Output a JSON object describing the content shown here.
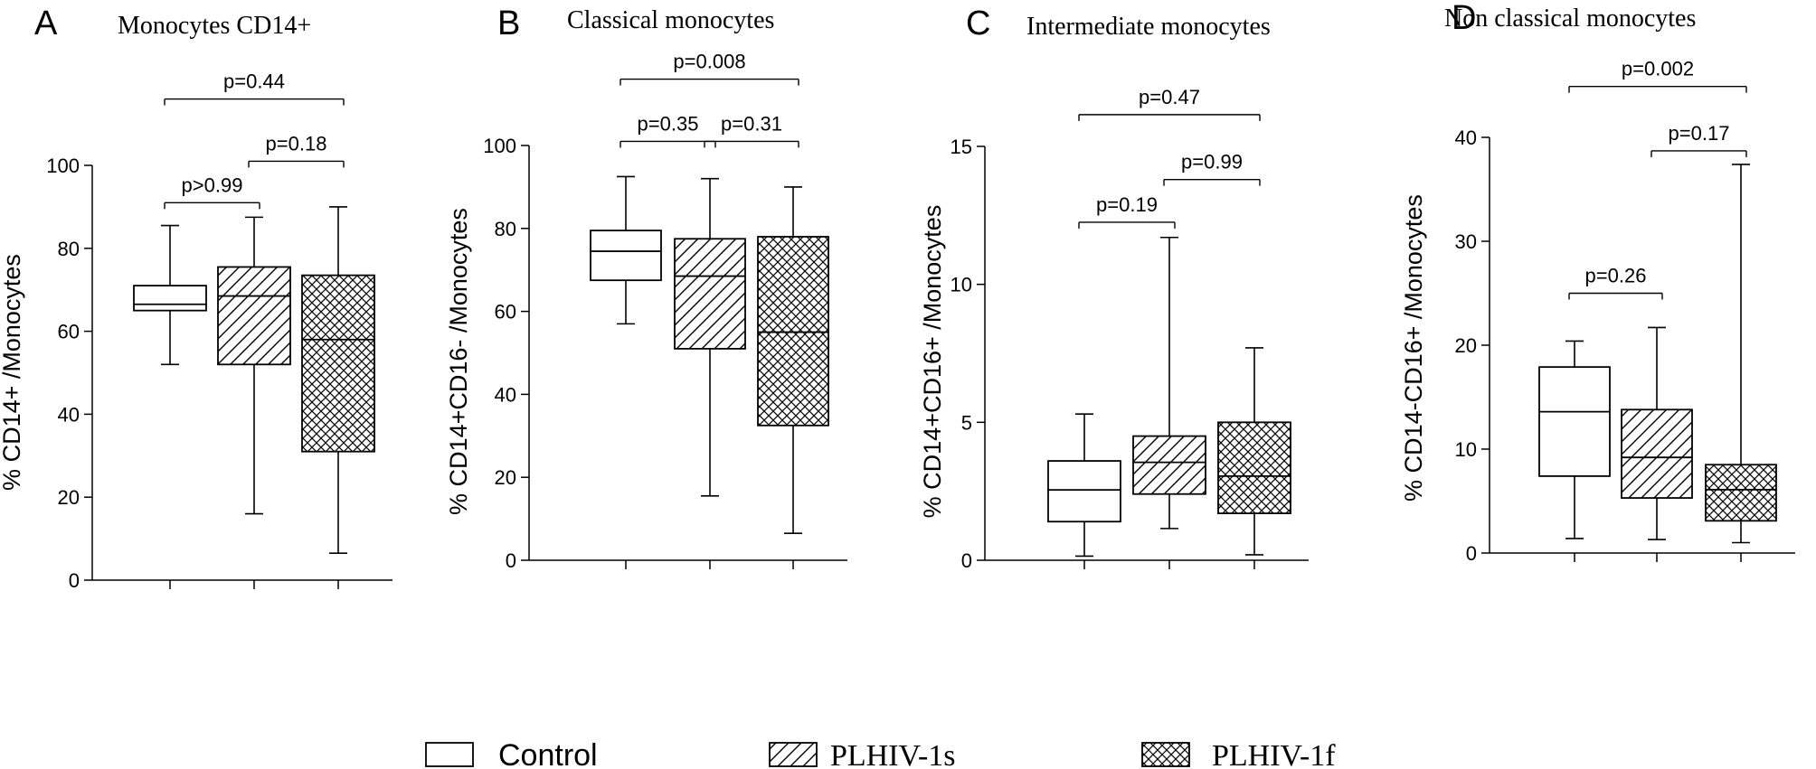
{
  "legend": [
    {
      "label": "Control",
      "pattern": "none"
    },
    {
      "label": "PLHIV-1s",
      "pattern": "hatch"
    },
    {
      "label": "PLHIV-1f",
      "pattern": "crosshatch"
    }
  ],
  "chart_data": [
    {
      "type": "box",
      "panel": "A",
      "title": "Monocytes CD14+",
      "ylabel": "% CD14+ /Monocytes",
      "ylim": [
        0,
        100
      ],
      "yticks": [
        0,
        20,
        40,
        60,
        80,
        100
      ],
      "groups": [
        "Control",
        "PLHIV-1s",
        "PLHIV-1f"
      ],
      "boxes": [
        {
          "group": "Control",
          "min": 52,
          "q1": 65,
          "median": 66.5,
          "q3": 71,
          "max": 85.5
        },
        {
          "group": "PLHIV-1s",
          "min": 16,
          "q1": 52,
          "median": 68.5,
          "q3": 75.5,
          "max": 87.5
        },
        {
          "group": "PLHIV-1f",
          "min": 6.5,
          "q1": 31,
          "median": 58,
          "q3": 73.5,
          "max": 90
        }
      ],
      "comparisons": [
        {
          "groups": [
            0,
            1
          ],
          "label": "p>0.99",
          "y": 91
        },
        {
          "groups": [
            1,
            2
          ],
          "label": "p=0.18",
          "y": 101
        },
        {
          "groups": [
            0,
            2
          ],
          "label": "p=0.44",
          "y": 116
        }
      ]
    },
    {
      "type": "box",
      "panel": "B",
      "title": "Classical monocytes",
      "ylabel": "% CD14+CD16- /Monocytes",
      "ylim": [
        0,
        100
      ],
      "yticks": [
        0,
        20,
        40,
        60,
        80,
        100
      ],
      "groups": [
        "Control",
        "PLHIV-1s",
        "PLHIV-1f"
      ],
      "boxes": [
        {
          "group": "Control",
          "min": 57,
          "q1": 67.5,
          "median": 74.5,
          "q3": 79.5,
          "max": 92.5
        },
        {
          "group": "PLHIV-1s",
          "min": 15.5,
          "q1": 51,
          "median": 68.5,
          "q3": 77.5,
          "max": 92
        },
        {
          "group": "PLHIV-1f",
          "min": 6.5,
          "q1": 32.5,
          "median": 55,
          "q3": 78,
          "max": 90
        }
      ],
      "comparisons": [
        {
          "groups": [
            0,
            1
          ],
          "label": "p=0.35",
          "y": 101
        },
        {
          "groups": [
            1,
            2
          ],
          "label": "p=0.31",
          "y": 101
        },
        {
          "groups": [
            0,
            2
          ],
          "label": "p=0.008",
          "y": 116
        }
      ]
    },
    {
      "type": "box",
      "panel": "C",
      "title": "Intermediate monocytes",
      "ylabel": "% CD14+CD16+ /Monocytes",
      "ylim": [
        0,
        15
      ],
      "yticks": [
        0,
        5,
        10,
        15
      ],
      "groups": [
        "Control",
        "PLHIV-1s",
        "PLHIV-1f"
      ],
      "boxes": [
        {
          "group": "Control",
          "min": 0.15,
          "q1": 1.4,
          "median": 2.55,
          "q3": 3.6,
          "max": 5.3
        },
        {
          "group": "PLHIV-1s",
          "min": 1.15,
          "q1": 2.4,
          "median": 3.55,
          "q3": 4.5,
          "max": 11.7
        },
        {
          "group": "PLHIV-1f",
          "min": 0.2,
          "q1": 1.7,
          "median": 3.05,
          "q3": 5,
          "max": 7.7
        }
      ],
      "comparisons": [
        {
          "groups": [
            0,
            1
          ],
          "label": "p=0.19",
          "y": 12.25
        },
        {
          "groups": [
            1,
            2
          ],
          "label": "p=0.99",
          "y": 13.8
        },
        {
          "groups": [
            0,
            2
          ],
          "label": "p=0.47",
          "y": 16.15
        }
      ]
    },
    {
      "type": "box",
      "panel": "D",
      "title": "Non classical monocytes",
      "ylabel": "% CD14-CD16+ /Monocytes",
      "ylim": [
        0,
        40
      ],
      "yticks": [
        0,
        10,
        20,
        30,
        40
      ],
      "groups": [
        "Control",
        "PLHIV-1s",
        "PLHIV-1f"
      ],
      "boxes": [
        {
          "group": "Control",
          "min": 1.4,
          "q1": 7.4,
          "median": 13.6,
          "q3": 17.9,
          "max": 20.4
        },
        {
          "group": "PLHIV-1s",
          "min": 1.3,
          "q1": 5.3,
          "median": 9.2,
          "q3": 13.8,
          "max": 21.7
        },
        {
          "group": "PLHIV-1f",
          "min": 1,
          "q1": 3.1,
          "median": 6.1,
          "q3": 8.5,
          "max": 37.4
        }
      ],
      "comparisons": [
        {
          "groups": [
            0,
            1
          ],
          "label": "p=0.26",
          "y": 25
        },
        {
          "groups": [
            1,
            2
          ],
          "label": "p=0.17",
          "y": 38.7
        },
        {
          "groups": [
            0,
            2
          ],
          "label": "p=0.002",
          "y": 44.9
        }
      ]
    }
  ]
}
